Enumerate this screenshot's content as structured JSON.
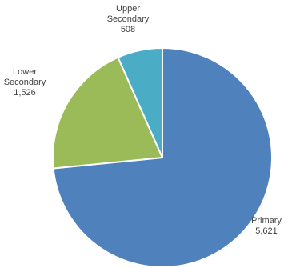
{
  "chart_data": {
    "type": "pie",
    "title": "",
    "start_angle_deg": 0,
    "direction": "clockwise",
    "slices": [
      {
        "category": "Primary",
        "value": 5621,
        "value_label": "5,621",
        "color": "#4f81bd",
        "label_lines": [
          "Primary"
        ]
      },
      {
        "category": "Lower Secondary",
        "value": 1526,
        "value_label": "1,526",
        "color": "#9bbb59",
        "label_lines": [
          "Lower",
          "Secondary"
        ]
      },
      {
        "category": "Upper Secondary",
        "value": 508,
        "value_label": "508",
        "color": "#4bacc6",
        "label_lines": [
          "Upper",
          "Secondary"
        ]
      }
    ],
    "legend": "none"
  }
}
